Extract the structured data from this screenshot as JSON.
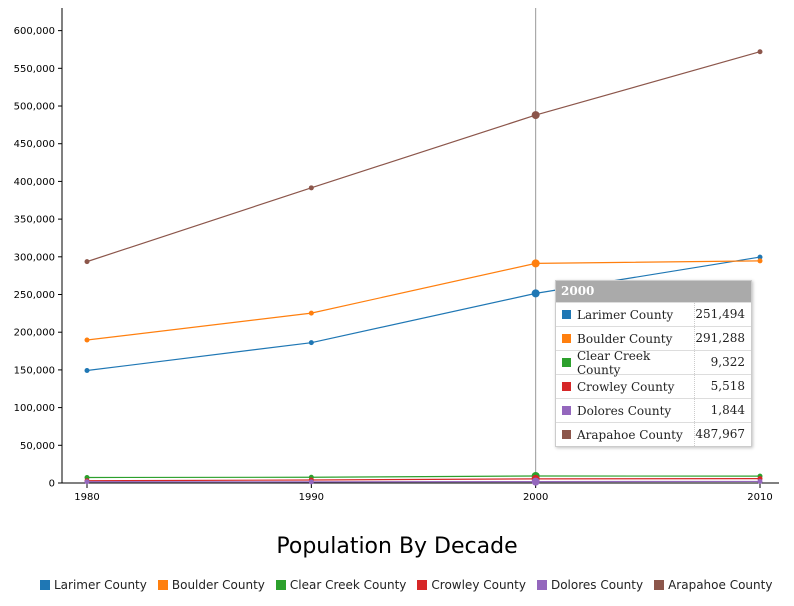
{
  "chart_data": {
    "type": "line",
    "title": "Population By Decade",
    "x": [
      "1980",
      "1990",
      "2000",
      "2010"
    ],
    "y_ticks": [
      "0",
      "50,000",
      "100,000",
      "150,000",
      "200,000",
      "250,000",
      "300,000",
      "350,000",
      "400,000",
      "450,000",
      "500,000",
      "550,000",
      "600,000"
    ],
    "ylim": [
      0,
      630000
    ],
    "series": [
      {
        "name": "Larimer County",
        "color": "#1f77b4",
        "values": [
          149184,
          186136,
          251494,
          299630
        ]
      },
      {
        "name": "Boulder County",
        "color": "#ff7f0e",
        "values": [
          189625,
          225339,
          291288,
          294567
        ]
      },
      {
        "name": "Clear Creek County",
        "color": "#2ca02c",
        "values": [
          7308,
          7619,
          9322,
          9088
        ]
      },
      {
        "name": "Crowley County",
        "color": "#d62728",
        "values": [
          2988,
          3946,
          5518,
          5823
        ]
      },
      {
        "name": "Dolores County",
        "color": "#9467bd",
        "values": [
          1658,
          1504,
          1844,
          2064
        ]
      },
      {
        "name": "Arapahoe County",
        "color": "#8c564b",
        "values": [
          293621,
          391511,
          487967,
          572003
        ]
      }
    ],
    "legend_position": "bottom",
    "grid": false,
    "highlight_x": "2000"
  },
  "tooltip": {
    "title": "2000",
    "rows": [
      {
        "name": "Larimer County",
        "value": "251,494",
        "color": "#1f77b4"
      },
      {
        "name": "Boulder County",
        "value": "291,288",
        "color": "#ff7f0e"
      },
      {
        "name": "Clear Creek County",
        "value": "9,322",
        "color": "#2ca02c"
      },
      {
        "name": "Crowley County",
        "value": "5,518",
        "color": "#d62728"
      },
      {
        "name": "Dolores County",
        "value": "1,844",
        "color": "#9467bd"
      },
      {
        "name": "Arapahoe County",
        "value": "487,967",
        "color": "#8c564b"
      }
    ]
  }
}
